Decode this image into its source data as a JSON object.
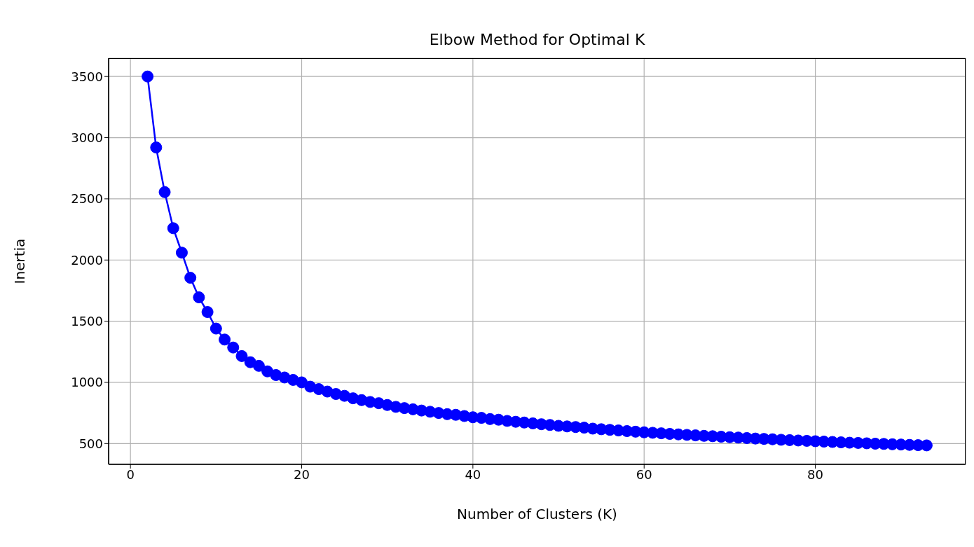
{
  "chart_data": {
    "type": "line",
    "title": "Elbow Method for Optimal K",
    "xlabel": "Number of Clusters (K)",
    "ylabel": "Inertia",
    "x": [
      2,
      3,
      4,
      5,
      6,
      7,
      8,
      9,
      10,
      11,
      12,
      13,
      14,
      15,
      16,
      17,
      18,
      19,
      20,
      21,
      22,
      23,
      24,
      25,
      26,
      27,
      28,
      29,
      30,
      31,
      32,
      33,
      34,
      35,
      36,
      37,
      38,
      39,
      40,
      41,
      42,
      43,
      44,
      45,
      46,
      47,
      48,
      49,
      50,
      51,
      52,
      53,
      54,
      55,
      56,
      57,
      58,
      59,
      60,
      61,
      62,
      63,
      64,
      65,
      66,
      67,
      68,
      69,
      70,
      71,
      72,
      73,
      74,
      75,
      76,
      77,
      78,
      79,
      80,
      81,
      82,
      83,
      84,
      85,
      86,
      87,
      88,
      89,
      90,
      91,
      92,
      93
    ],
    "series": [
      {
        "color": "#0000ff",
        "values": [
          3500,
          2920,
          2555,
          2260,
          2060,
          1855,
          1695,
          1575,
          1440,
          1350,
          1285,
          1215,
          1165,
          1135,
          1090,
          1060,
          1040,
          1020,
          1000,
          965,
          945,
          925,
          905,
          890,
          870,
          855,
          840,
          830,
          815,
          800,
          790,
          780,
          770,
          760,
          750,
          740,
          735,
          725,
          715,
          710,
          700,
          695,
          685,
          678,
          672,
          665,
          658,
          652,
          645,
          640,
          635,
          630,
          622,
          617,
          612,
          607,
          602,
          597,
          592,
          588,
          584,
          579,
          575,
          571,
          567,
          563,
          560,
          556,
          552,
          549,
          545,
          541,
          538,
          535,
          531,
          528,
          525,
          522,
          519,
          516,
          513,
          510,
          507,
          505,
          502,
          499,
          497,
          494,
          492,
          489,
          487,
          485
        ]
      }
    ],
    "xlim": [
      -2.55,
      97.55
    ],
    "xticks": [
      0,
      20,
      40,
      60,
      80
    ],
    "ylim": [
      330,
      3650
    ],
    "yticks": [
      500,
      1000,
      1500,
      2000,
      2500,
      3000,
      3500
    ],
    "grid": true,
    "marker": "circle",
    "line_style": "solid"
  }
}
